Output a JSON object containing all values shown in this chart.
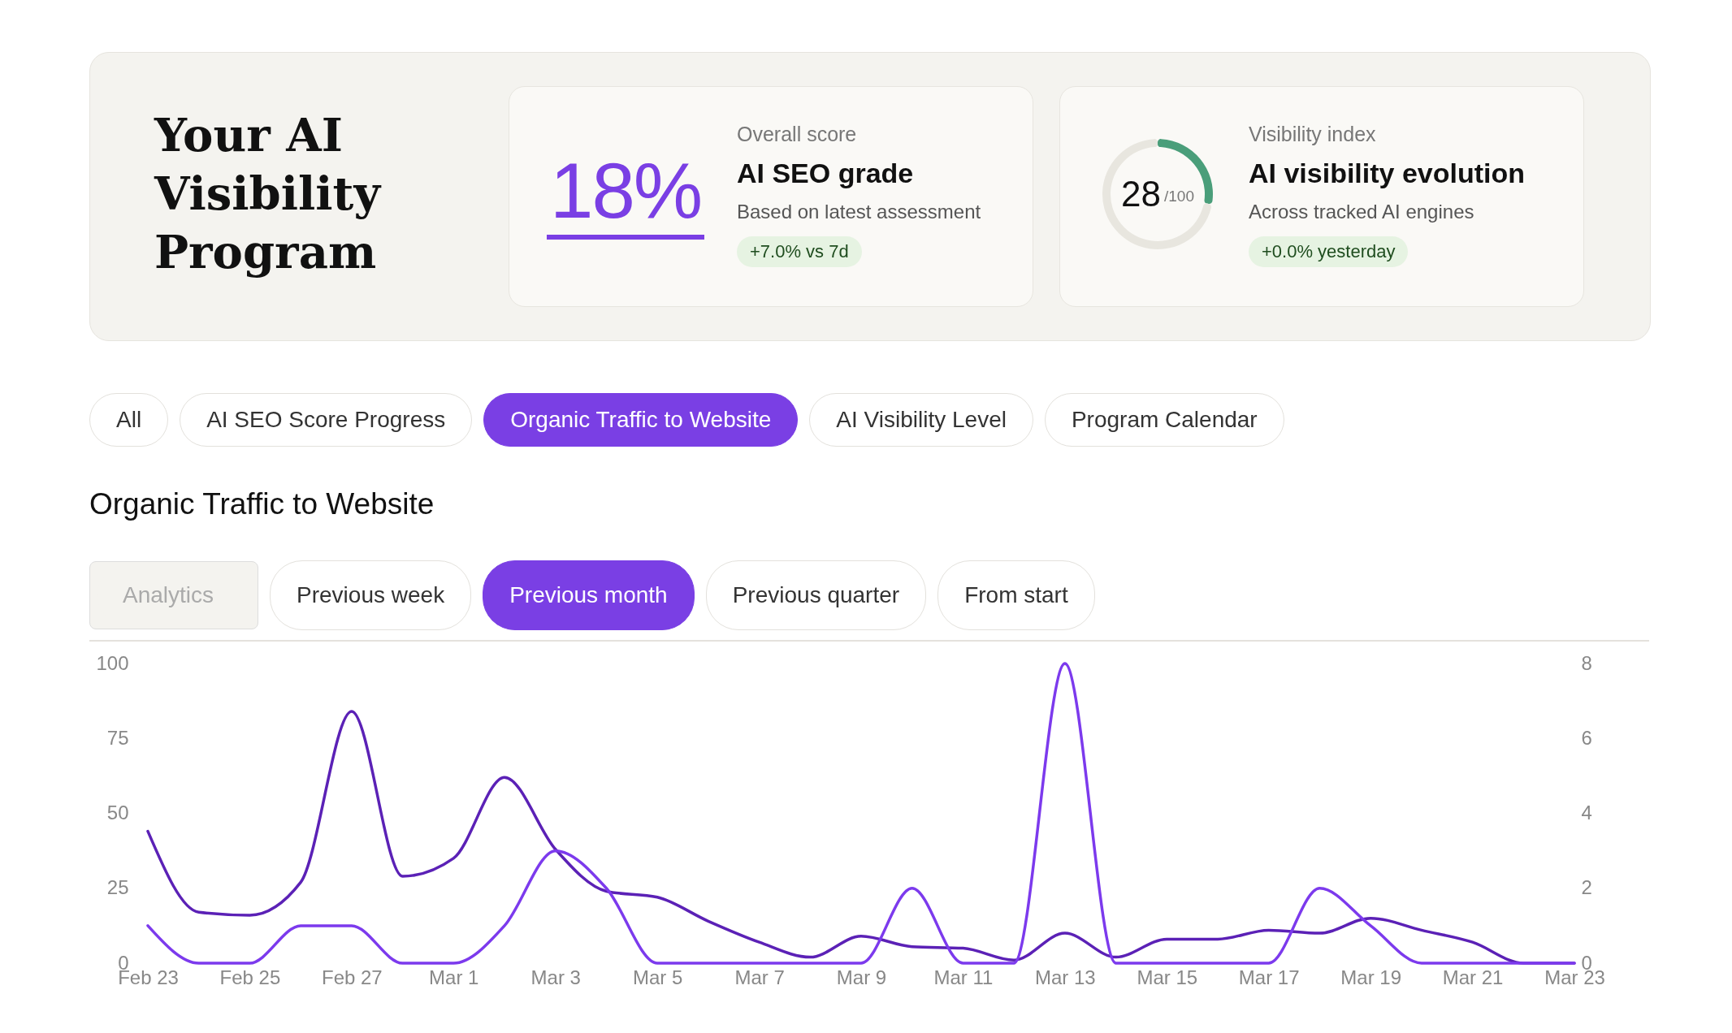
{
  "chart_data": [
    {
      "type": "other",
      "title": "Your AI Visibility Program"
    },
    {
      "type": "other",
      "title": "AI SEO grade",
      "subtitle": "Based on latest assessment",
      "annotations": [
        "Overall score",
        "18%",
        "+7.0% vs 7d"
      ]
    },
    {
      "type": "donut",
      "title": "AI visibility evolution",
      "subtitle": "Across tracked AI engines",
      "categories": [
        null,
        null
      ],
      "values": [
        28,
        72
      ],
      "colors": [
        "#4a9e7a",
        "#e8e6df"
      ],
      "annotations": [
        "Visibility index",
        "28",
        "/100",
        "+0.0% yesterday"
      ]
    },
    {
      "type": "other",
      "annotations": [
        "All",
        "AI SEO Score Progress",
        "Organic Traffic to Website",
        "AI Visibility Level",
        "Program Calendar",
        "Analytics",
        "Previous week",
        "Previous month",
        "Previous quarter",
        "From start"
      ]
    },
    {
      "type": "line",
      "title": "Organic Traffic to Website",
      "marker": "none",
      "line_style": "solid",
      "categories": [
        "Feb 23",
        null,
        "Feb 25",
        null,
        "Feb 27",
        null,
        "Mar 1",
        null,
        "Mar 3",
        null,
        "Mar 5",
        null,
        "Mar 7",
        null,
        "Mar 9",
        null,
        "Mar 11",
        null,
        "Mar 13",
        null,
        "Mar 15",
        null,
        "Mar 17",
        null,
        "Mar 19",
        null,
        "Mar 21",
        null,
        "Mar 23"
      ],
      "series": [
        {
          "color": "#5b21b6",
          "values": [
            44,
            17,
            16,
            27,
            84,
            29,
            35,
            62,
            38,
            24,
            22,
            14,
            7,
            2,
            9,
            5.5,
            5,
            1,
            10,
            2,
            8,
            8,
            11,
            10,
            15,
            11,
            7,
            0,
            0
          ]
        },
        {
          "color": "#7c3aed",
          "axis": "y2",
          "values": [
            1,
            0,
            0,
            1,
            1,
            0,
            0,
            1,
            3,
            2,
            0,
            0,
            0,
            0,
            0,
            2,
            0,
            0,
            8,
            0,
            0,
            0,
            0,
            2,
            1,
            0,
            0,
            0,
            0
          ]
        }
      ],
      "ylim": [
        0,
        100
      ],
      "yticks": [
        0,
        25,
        50,
        75,
        100
      ],
      "y2lim": [
        0,
        8
      ],
      "y2ticks": [
        0,
        2,
        4,
        6,
        8
      ]
    }
  ]
}
